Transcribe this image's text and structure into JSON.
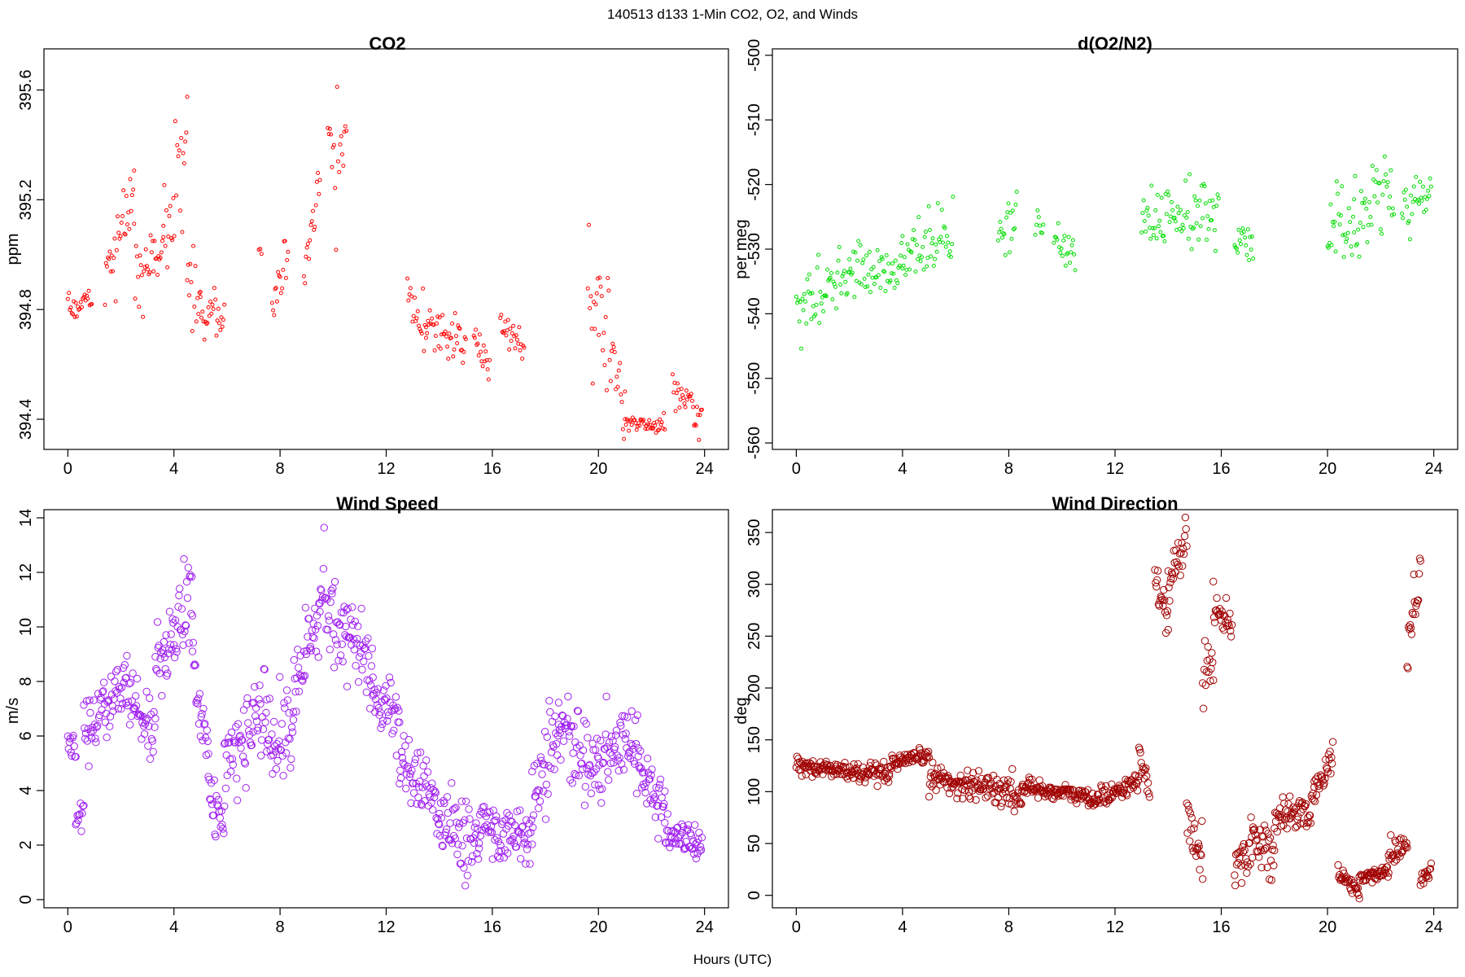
{
  "figure": {
    "title": "140513   d133   1-Min CO2, O2, and Winds",
    "xlabel": "Hours (UTC)"
  },
  "chart_data": [
    {
      "type": "scatter",
      "title": "CO2",
      "xlabel": "",
      "ylabel": "ppm",
      "xlim": [
        -0.9,
        24.9
      ],
      "ylim": [
        394.29,
        395.75
      ],
      "xticks": [
        0,
        4,
        8,
        12,
        16,
        20,
        24
      ],
      "xtick_labels": [
        "0",
        "4",
        "8",
        "12",
        "16",
        "20",
        "24"
      ],
      "yticks": [
        394.4,
        394.8,
        395.2,
        395.6
      ],
      "ytick_labels": [
        "394.4",
        "394.8",
        "395.2",
        "395.6"
      ],
      "color": "#ff0000",
      "marker_size": 2.0,
      "series": [
        {
          "name": "CO2",
          "segments": [
            [
              0.0,
              0.9,
              394.78,
              394.83,
              0.06
            ],
            [
              1.4,
              2.5,
              394.92,
              395.2,
              0.12
            ],
            [
              2.5,
              3.6,
              394.9,
              395.05,
              0.14
            ],
            [
              3.6,
              4.5,
              395.1,
              395.35,
              0.22
            ],
            [
              4.5,
              5.0,
              394.9,
              394.85,
              0.12
            ],
            [
              5.0,
              5.9,
              394.8,
              394.76,
              0.09
            ],
            [
              7.2,
              7.3,
              395.01,
              395.01,
              0.01
            ],
            [
              7.7,
              8.3,
              394.83,
              395.0,
              0.08
            ],
            [
              8.9,
              9.5,
              394.9,
              395.25,
              0.1
            ],
            [
              9.8,
              10.5,
              395.4,
              395.3,
              0.22
            ],
            [
              12.8,
              13.5,
              394.85,
              394.75,
              0.1
            ],
            [
              13.5,
              15.0,
              394.75,
              394.68,
              0.08
            ],
            [
              15.3,
              15.9,
              394.7,
              394.58,
              0.05
            ],
            [
              16.3,
              17.2,
              394.72,
              394.68,
              0.07
            ],
            [
              19.6,
              20.5,
              394.85,
              394.65,
              0.18
            ],
            [
              20.5,
              21.0,
              394.7,
              394.4,
              0.12
            ],
            [
              21.0,
              22.5,
              394.38,
              394.38,
              0.03
            ],
            [
              22.8,
              23.9,
              394.5,
              394.4,
              0.07
            ]
          ]
        }
      ]
    },
    {
      "type": "scatter",
      "title": "d(O2/N2)",
      "xlabel": "",
      "ylabel": "per meg",
      "xlim": [
        -0.9,
        24.9
      ],
      "ylim": [
        -561,
        -499
      ],
      "xticks": [
        0,
        4,
        8,
        12,
        16,
        20,
        24
      ],
      "xtick_labels": [
        "0",
        "4",
        "8",
        "12",
        "16",
        "20",
        "24"
      ],
      "yticks": [
        -560,
        -550,
        -540,
        -530,
        -520,
        -510,
        -500
      ],
      "ytick_labels": [
        "-560",
        "-550",
        "-540",
        "-530",
        "-520",
        "-510",
        "-500"
      ],
      "color": "#00dd00",
      "marker_size": 2.0,
      "series": [
        {
          "name": "d(O2/N2)",
          "segments": [
            [
              0.0,
              2.0,
              -539,
              -534,
              4.5
            ],
            [
              2.0,
              4.0,
              -534,
              -532,
              4.5
            ],
            [
              4.0,
              5.9,
              -532,
              -527,
              4.5
            ],
            [
              7.6,
              8.3,
              -528,
              -523,
              4
            ],
            [
              9.0,
              9.3,
              -526,
              -526,
              2.5
            ],
            [
              9.7,
              10.5,
              -528,
              -531,
              3.5
            ],
            [
              13.0,
              15.9,
              -524,
              -525,
              5
            ],
            [
              16.5,
              17.2,
              -529,
              -529,
              3.5
            ],
            [
              20.0,
              21.0,
              -527,
              -526,
              6
            ],
            [
              21.0,
              22.5,
              -526,
              -521,
              6
            ],
            [
              22.8,
              23.9,
              -525,
              -521,
              5
            ]
          ]
        }
      ]
    },
    {
      "type": "scatter",
      "title": "Wind Speed",
      "xlabel": "",
      "ylabel": "m/s",
      "xlim": [
        -0.9,
        24.9
      ],
      "ylim": [
        -0.3,
        14.3
      ],
      "xticks": [
        0,
        4,
        8,
        12,
        16,
        20,
        24
      ],
      "xtick_labels": [
        "0",
        "4",
        "8",
        "12",
        "16",
        "20",
        "24"
      ],
      "yticks": [
        0,
        2,
        4,
        6,
        8,
        10,
        12,
        14
      ],
      "ytick_labels": [
        "0",
        "2",
        "4",
        "6",
        "8",
        "10",
        "12",
        "14"
      ],
      "color": "#a020f0",
      "marker_size": 4.2,
      "series": [
        {
          "name": "Wind Speed",
          "segments": [
            [
              0.0,
              0.3,
              6.0,
              5.5,
              0.5
            ],
            [
              0.3,
              0.6,
              3.0,
              3.0,
              0.5
            ],
            [
              0.6,
              2.2,
              6.0,
              8.0,
              1.0
            ],
            [
              2.2,
              3.3,
              7.5,
              6.0,
              1.0
            ],
            [
              3.3,
              4.7,
              8.5,
              11.0,
              1.4
            ],
            [
              4.7,
              5.3,
              9.0,
              4.5,
              1.2
            ],
            [
              5.3,
              5.9,
              4.0,
              2.5,
              1.0
            ],
            [
              5.9,
              7.5,
              5.0,
              7.0,
              1.5
            ],
            [
              7.5,
              8.5,
              5.0,
              6.5,
              1.5
            ],
            [
              8.5,
              9.5,
              7.5,
              10.5,
              1.3
            ],
            [
              9.5,
              10.5,
              11.5,
              9.5,
              1.6
            ],
            [
              10.5,
              11.5,
              10.0,
              8.5,
              1.5
            ],
            [
              11.5,
              12.5,
              7.5,
              6.5,
              1.0
            ],
            [
              12.5,
              14.0,
              5.0,
              3.5,
              1.2
            ],
            [
              14.0,
              15.5,
              3.0,
              2.0,
              1.3
            ],
            [
              15.5,
              17.5,
              2.7,
              2.3,
              0.8
            ],
            [
              17.5,
              18.5,
              3.5,
              6.5,
              1.3
            ],
            [
              18.5,
              20.0,
              6.5,
              4.5,
              1.3
            ],
            [
              20.0,
              21.5,
              5.0,
              6.0,
              1.2
            ],
            [
              21.5,
              22.5,
              5.0,
              3.0,
              1.0
            ],
            [
              22.5,
              23.9,
              2.5,
              2.0,
              0.6
            ]
          ]
        }
      ]
    },
    {
      "type": "scatter",
      "title": "Wind Direction",
      "xlabel": "",
      "ylabel": "deg",
      "xlim": [
        -0.9,
        24.9
      ],
      "ylim": [
        -12,
        372
      ],
      "xticks": [
        0,
        4,
        8,
        12,
        16,
        20,
        24
      ],
      "xtick_labels": [
        "0",
        "4",
        "8",
        "12",
        "16",
        "20",
        "24"
      ],
      "yticks": [
        0,
        50,
        100,
        150,
        200,
        250,
        300,
        350
      ],
      "ytick_labels": [
        "0",
        "50",
        "100",
        "150",
        "200",
        "250",
        "300",
        "350"
      ],
      "color": "#a00000",
      "marker_size": 4.2,
      "series": [
        {
          "name": "Wind Direction",
          "segments": [
            [
              0.0,
              3.5,
              125,
              115,
              9
            ],
            [
              3.5,
              5.0,
              125,
              135,
              7
            ],
            [
              5.0,
              6.5,
              115,
              105,
              12
            ],
            [
              6.5,
              8.5,
              110,
              95,
              14
            ],
            [
              8.5,
              11.0,
              105,
              95,
              8
            ],
            [
              11.0,
              12.9,
              90,
              110,
              8
            ],
            [
              12.9,
              13.3,
              135,
              100,
              10
            ],
            [
              13.5,
              14.0,
              300,
              270,
              15
            ],
            [
              14.0,
              14.7,
              300,
              340,
              20
            ],
            [
              14.7,
              15.3,
              80,
              40,
              25
            ],
            [
              15.3,
              15.7,
              200,
              230,
              25
            ],
            [
              15.7,
              16.4,
              280,
              260,
              15
            ],
            [
              16.5,
              17.2,
              30,
              50,
              20
            ],
            [
              17.2,
              18.0,
              60,
              40,
              20
            ],
            [
              18.0,
              19.5,
              70,
              85,
              15
            ],
            [
              19.5,
              20.2,
              100,
              135,
              15
            ],
            [
              20.4,
              21.2,
              20,
              5,
              8
            ],
            [
              21.2,
              22.3,
              15,
              25,
              8
            ],
            [
              22.3,
              23.0,
              40,
              50,
              12
            ],
            [
              23.0,
              23.5,
              240,
              320,
              30
            ],
            [
              23.5,
              23.9,
              15,
              25,
              10
            ]
          ]
        }
      ]
    }
  ]
}
